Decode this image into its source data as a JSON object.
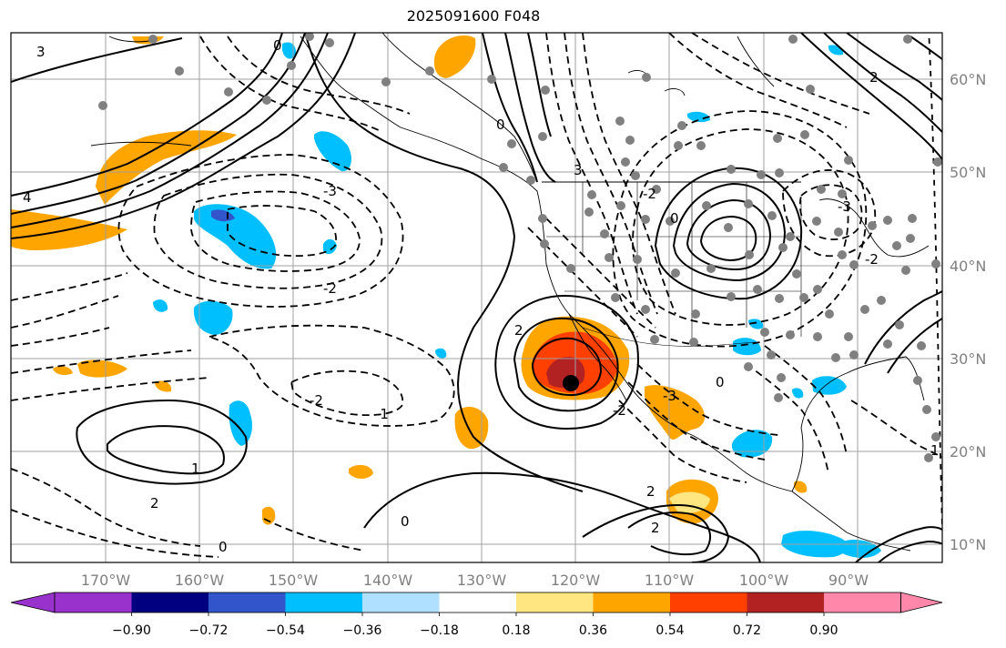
{
  "title": "2025091600 F048",
  "map": {
    "lon_labels": [
      "170°W",
      "160°W",
      "150°W",
      "140°W",
      "130°W",
      "120°W",
      "110°W",
      "100°W",
      "90°W"
    ],
    "lat_labels": [
      "60°N",
      "50°N",
      "40°N",
      "30°N",
      "20°N",
      "10°N"
    ],
    "contour_labels": [
      "0",
      "3",
      "4",
      "-3",
      "-2",
      "-1",
      "1",
      "2",
      "0",
      "3",
      "2",
      "-2",
      "-3",
      "2",
      "-2",
      "0",
      "0",
      "1",
      "0",
      "-2",
      "2",
      "-3",
      "-2",
      "0",
      "2"
    ],
    "marker": "black-dot"
  },
  "colorbar": {
    "ticks": [
      "−0.90",
      "−0.72",
      "−0.54",
      "−0.36",
      "−0.18",
      "0.18",
      "0.36",
      "0.54",
      "0.72",
      "0.90"
    ],
    "colors": [
      "#9932cc",
      "#000080",
      "#3355cc",
      "#00bfff",
      "#b0e0ff",
      "#ffffff",
      "#ffe680",
      "#ffa500",
      "#ff4000",
      "#b22222",
      "#ff88aa"
    ]
  }
}
